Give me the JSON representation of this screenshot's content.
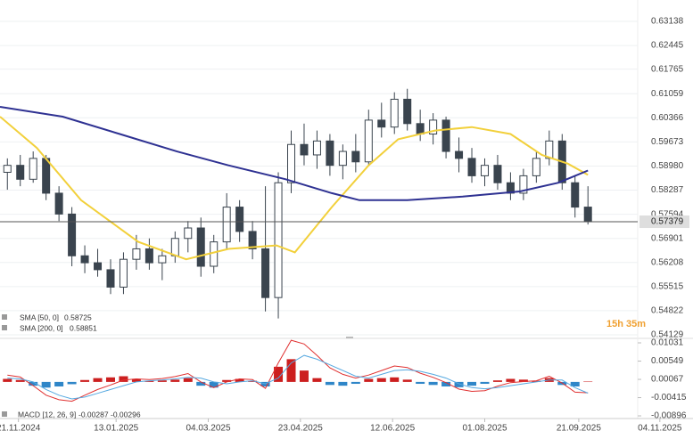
{
  "chart_data": [
    {
      "type": "candlestick",
      "color": "#3a444e",
      "x": [
        "2024-11-15",
        "2024-11-22",
        "2024-11-29",
        "2024-12-06",
        "2024-12-13",
        "2024-12-20",
        "2024-12-27",
        "2025-01-03",
        "2025-01-10",
        "2025-01-17",
        "2025-01-24",
        "2025-01-31",
        "2025-02-07",
        "2025-02-14",
        "2025-02-21",
        "2025-02-28",
        "2025-03-07",
        "2025-03-14",
        "2025-03-21",
        "2025-03-28",
        "2025-04-04",
        "2025-04-11",
        "2025-04-18",
        "2025-04-25",
        "2025-05-02",
        "2025-05-09",
        "2025-05-16",
        "2025-05-23",
        "2025-05-30",
        "2025-06-06",
        "2025-06-13",
        "2025-06-20",
        "2025-06-27",
        "2025-07-04",
        "2025-07-11",
        "2025-07-18",
        "2025-07-25",
        "2025-08-01",
        "2025-08-08",
        "2025-08-15",
        "2025-08-22",
        "2025-08-29",
        "2025-09-05",
        "2025-09-12",
        "2025-09-19",
        "2025-09-26"
      ],
      "open": [
        0.588,
        0.59,
        0.586,
        0.592,
        0.582,
        0.576,
        0.564,
        0.562,
        0.56,
        0.555,
        0.563,
        0.566,
        0.562,
        0.564,
        0.569,
        0.572,
        0.561,
        0.568,
        0.578,
        0.571,
        0.566,
        0.552,
        0.585,
        0.596,
        0.593,
        0.597,
        0.59,
        0.594,
        0.591,
        0.603,
        0.601,
        0.609,
        0.602,
        0.599,
        0.603,
        0.594,
        0.592,
        0.587,
        0.59,
        0.585,
        0.582,
        0.587,
        0.592,
        0.597,
        0.585,
        0.578
      ],
      "high": [
        0.592,
        0.593,
        0.594,
        0.593,
        0.584,
        0.578,
        0.567,
        0.566,
        0.563,
        0.565,
        0.57,
        0.569,
        0.566,
        0.571,
        0.574,
        0.575,
        0.57,
        0.582,
        0.58,
        0.574,
        0.584,
        0.588,
        0.6,
        0.602,
        0.6,
        0.599,
        0.596,
        0.599,
        0.606,
        0.608,
        0.611,
        0.612,
        0.606,
        0.605,
        0.604,
        0.598,
        0.595,
        0.592,
        0.593,
        0.588,
        0.589,
        0.594,
        0.6,
        0.599,
        0.587,
        0.584
      ],
      "low": [
        0.583,
        0.584,
        0.585,
        0.58,
        0.574,
        0.561,
        0.559,
        0.558,
        0.553,
        0.553,
        0.56,
        0.56,
        0.557,
        0.562,
        0.565,
        0.558,
        0.559,
        0.566,
        0.568,
        0.563,
        0.548,
        0.546,
        0.582,
        0.59,
        0.589,
        0.587,
        0.586,
        0.588,
        0.59,
        0.598,
        0.599,
        0.6,
        0.597,
        0.596,
        0.592,
        0.588,
        0.585,
        0.584,
        0.583,
        0.58,
        0.58,
        0.585,
        0.59,
        0.583,
        0.575,
        0.573
      ],
      "close": [
        0.59,
        0.586,
        0.592,
        0.582,
        0.576,
        0.564,
        0.562,
        0.56,
        0.555,
        0.563,
        0.566,
        0.562,
        0.564,
        0.569,
        0.572,
        0.561,
        0.568,
        0.578,
        0.571,
        0.566,
        0.552,
        0.585,
        0.596,
        0.593,
        0.597,
        0.59,
        0.594,
        0.591,
        0.603,
        0.601,
        0.609,
        0.602,
        0.599,
        0.603,
        0.594,
        0.592,
        0.587,
        0.59,
        0.585,
        0.582,
        0.587,
        0.592,
        0.597,
        0.585,
        0.578,
        0.57379
      ],
      "series": [
        {
          "name": "SMA [50, 0]",
          "color": "#f2d03b",
          "last_value": 0.58725,
          "x": [
            "2024-11-11",
            "2024-12-01",
            "2024-12-25",
            "2025-01-25",
            "2025-02-20",
            "2025-03-15",
            "2025-04-10",
            "2025-04-20",
            "2025-05-10",
            "2025-05-30",
            "2025-06-15",
            "2025-07-05",
            "2025-07-25",
            "2025-08-15",
            "2025-09-01",
            "2025-09-15",
            "2025-09-26"
          ],
          "values": [
            0.604,
            0.595,
            0.58,
            0.568,
            0.563,
            0.566,
            0.567,
            0.565,
            0.578,
            0.59,
            0.5975,
            0.6,
            0.601,
            0.599,
            0.593,
            0.5905,
            0.58725
          ]
        },
        {
          "name": "SMA [200, 0]",
          "color": "#2e3192",
          "last_value": 0.58851,
          "x": [
            "2024-11-11",
            "2024-12-15",
            "2025-01-15",
            "2025-02-15",
            "2025-03-15",
            "2025-04-15",
            "2025-05-10",
            "2025-05-25",
            "2025-06-20",
            "2025-07-20",
            "2025-08-20",
            "2025-09-10",
            "2025-09-26"
          ],
          "values": [
            0.6068,
            0.604,
            0.599,
            0.594,
            0.59,
            0.586,
            0.582,
            0.58,
            0.58,
            0.581,
            0.5825,
            0.585,
            0.58851
          ]
        }
      ],
      "last_price": 0.57379,
      "countdown": "15h 35m",
      "xlim": [
        "2024-11-11",
        "2025-11-22"
      ],
      "ylim": [
        0.54027,
        0.63752
      ],
      "yticks": [
        0.63138,
        0.62445,
        0.61765,
        0.61059,
        0.60366,
        0.59673,
        {
          "value": 0.5898,
          "label": "0.58980"
        },
        0.58287,
        0.57594,
        0.56901,
        0.56208,
        0.55515,
        0.54822,
        0.54129
      ],
      "grid": true
    },
    {
      "type": "macd",
      "name": "MACD [12, 26, 9]",
      "x": [
        "2024-11-15",
        "2024-11-22",
        "2024-11-29",
        "2024-12-06",
        "2024-12-13",
        "2024-12-20",
        "2024-12-27",
        "2025-01-03",
        "2025-01-10",
        "2025-01-17",
        "2025-01-24",
        "2025-01-31",
        "2025-02-07",
        "2025-02-14",
        "2025-02-21",
        "2025-02-28",
        "2025-03-07",
        "2025-03-14",
        "2025-03-21",
        "2025-03-28",
        "2025-04-04",
        "2025-04-11",
        "2025-04-18",
        "2025-04-25",
        "2025-05-02",
        "2025-05-09",
        "2025-05-16",
        "2025-05-23",
        "2025-05-30",
        "2025-06-06",
        "2025-06-13",
        "2025-06-20",
        "2025-06-27",
        "2025-07-04",
        "2025-07-11",
        "2025-07-18",
        "2025-07-25",
        "2025-08-01",
        "2025-08-08",
        "2025-08-15",
        "2025-08-22",
        "2025-08-29",
        "2025-09-05",
        "2025-09-12",
        "2025-09-19",
        "2025-09-26"
      ],
      "histogram": [
        0.0008,
        0.0005,
        -0.001,
        -0.0015,
        -0.0012,
        -0.0006,
        0.0005,
        0.001,
        0.0012,
        0.0015,
        0.0008,
        0.0003,
        0.0004,
        0.0006,
        0.001,
        -0.001,
        -0.0015,
        0.0005,
        0.0008,
        0.0003,
        -0.0012,
        0.004,
        0.006,
        0.003,
        0.001,
        -0.0008,
        -0.001,
        -0.0005,
        0.0008,
        0.001,
        0.0012,
        0.0006,
        -0.0005,
        -0.0008,
        -0.0012,
        -0.0014,
        -0.001,
        -0.0005,
        0.0004,
        0.0008,
        0.0006,
        0.0003,
        0.001,
        -0.0008,
        -0.0012,
        9e-05
      ],
      "up_color": "#cc1f1f",
      "down_color": "#2f86c8",
      "series": [
        {
          "name": "MACD",
          "color": "#e03030",
          "last_value": -0.00287,
          "values": [
            0.0018,
            0.0013,
            -0.001,
            -0.0035,
            -0.0047,
            -0.0051,
            -0.0035,
            -0.002,
            -0.0008,
            0.0005,
            0.0008,
            0.0006,
            0.0009,
            0.0014,
            0.0022,
            0,
            -0.0015,
            0,
            0.0008,
            0.0006,
            -0.0017,
            0.005,
            0.011,
            0.01,
            0.007,
            0.0037,
            0.002,
            0.001,
            0.0018,
            0.003,
            0.0042,
            0.0038,
            0.0023,
            0.0012,
            -0.0002,
            -0.0019,
            -0.0025,
            -0.0023,
            -0.0011,
            -0.0002,
            0.0001,
            0.0003,
            0.0015,
            -0.0003,
            -0.0027,
            -0.00287
          ]
        },
        {
          "name": "Signal",
          "color": "#55a8e0",
          "last_value": -0.00296,
          "values": [
            0.001,
            0.0008,
            0,
            -0.002,
            -0.0035,
            -0.0045,
            -0.004,
            -0.003,
            -0.002,
            -0.001,
            0,
            0.0003,
            0.0005,
            0.0008,
            0.0012,
            0.001,
            0,
            -0.0005,
            0,
            0.0003,
            -0.0005,
            0.001,
            0.005,
            0.007,
            0.006,
            0.0045,
            0.003,
            0.0015,
            0.001,
            0.002,
            0.003,
            0.0032,
            0.0028,
            0.002,
            0.001,
            -0.0005,
            -0.0015,
            -0.0018,
            -0.0015,
            -0.001,
            -0.0005,
            0,
            0.0005,
            0.0005,
            -0.0015,
            -0.00296
          ]
        }
      ],
      "xlim": [
        "2024-11-11",
        "2025-11-22"
      ],
      "ylim": [
        -0.00966,
        0.01149
      ],
      "yticks": [
        0.01031,
        0.00549,
        0.00067,
        -0.00415,
        -0.00896
      ],
      "xticks": [
        "21.11.2024",
        "13.01.2025",
        "04.03.2025",
        "23.04.2025",
        "12.06.2025",
        "01.08.2025",
        "21.09.2025",
        "04.11.2025"
      ]
    }
  ]
}
